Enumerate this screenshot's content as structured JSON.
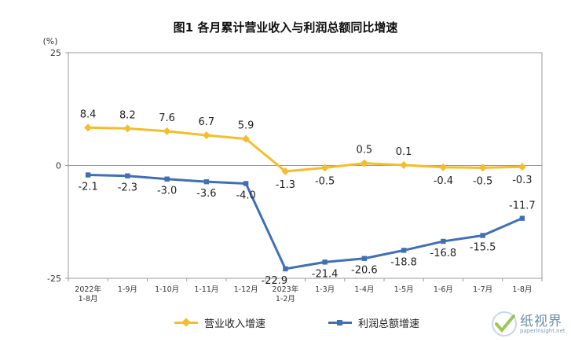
{
  "chart_data": {
    "type": "line",
    "title": "图1  各月累计营业收入与利润总额同比增速",
    "ylabel": "(%)",
    "ylim": [
      -25,
      25
    ],
    "yticks": [
      "25",
      "0",
      "-25"
    ],
    "categories": [
      "2022年\n1-8月",
      "1-9月",
      "1-10月",
      "1-11月",
      "1-12月",
      "2023年\n1-2月",
      "1-3月",
      "1-4月",
      "1-5月",
      "1-6月",
      "1-7月",
      "1-8月"
    ],
    "series": [
      {
        "name": "营业收入增速",
        "color": "#f5bd2b",
        "marker": "diamond",
        "values": [
          8.4,
          8.2,
          7.6,
          6.7,
          5.9,
          -1.3,
          -0.5,
          0.5,
          0.1,
          -0.4,
          -0.5,
          -0.3
        ],
        "labels": [
          "8.4",
          "8.2",
          "7.6",
          "6.7",
          "5.9",
          "-1.3",
          "-0.5",
          "0.5",
          "0.1",
          "-0.4",
          "-0.5",
          "-0.3"
        ]
      },
      {
        "name": "利润总额增速",
        "color": "#3f6fb6",
        "marker": "square",
        "values": [
          -2.1,
          -2.3,
          -3.0,
          -3.6,
          -4.0,
          -22.9,
          -21.4,
          -20.6,
          -18.8,
          -16.8,
          -15.5,
          -11.7
        ],
        "labels": [
          "-2.1",
          "-2.3",
          "-3.0",
          "-3.6",
          "-4.0",
          "-22.9",
          "-21.4",
          "-20.6",
          "-18.8",
          "-16.8",
          "-15.5",
          "-11.7"
        ]
      }
    ],
    "grid": false,
    "legend": "bottom"
  },
  "watermark": {
    "brand": "纸视界",
    "url": "paperinsight.net"
  }
}
